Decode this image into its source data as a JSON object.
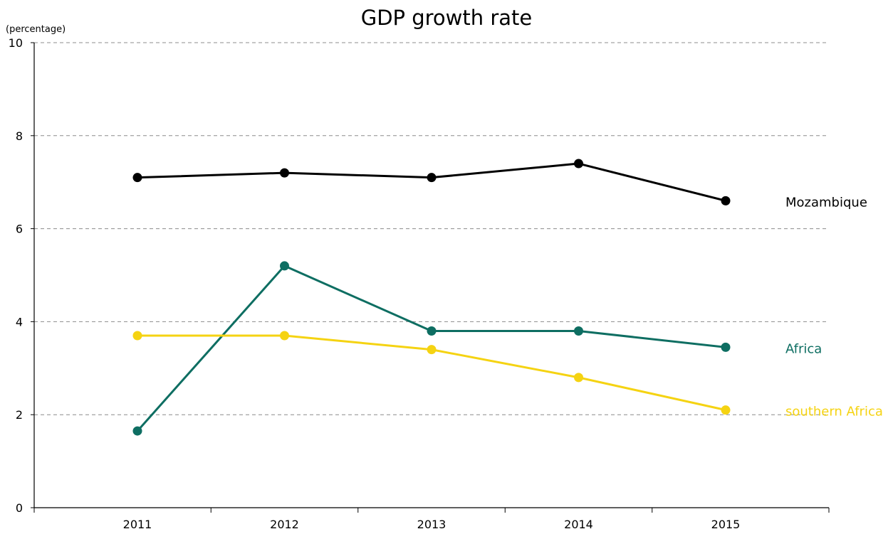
{
  "chart_data": {
    "type": "line",
    "title": "GDP growth rate",
    "ylabel": "(percentage)",
    "xlabel": "",
    "categories": [
      "2011",
      "2012",
      "2013",
      "2014",
      "2015"
    ],
    "ylim": [
      0,
      10
    ],
    "yticks": [
      "0",
      "2",
      "4",
      "6",
      "8",
      "10"
    ],
    "grid": true,
    "legend": "right-end labels",
    "series": [
      {
        "name": "Mozambique",
        "color": "#000000",
        "values": [
          7.1,
          7.2,
          7.1,
          7.4,
          6.6
        ]
      },
      {
        "name": "Africa",
        "color": "#0e6e62",
        "values": [
          1.65,
          5.2,
          3.8,
          3.8,
          3.45
        ]
      },
      {
        "name": "southern Africa",
        "color": "#f5d312",
        "values": [
          3.7,
          3.7,
          3.4,
          2.8,
          2.1
        ]
      }
    ]
  }
}
